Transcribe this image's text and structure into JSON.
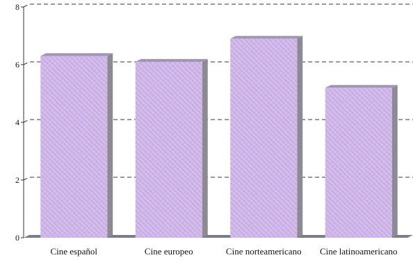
{
  "chart_data": {
    "type": "bar",
    "categories": [
      "Cine español",
      "Cine europeo",
      "Cine norteamericano",
      "Cine latinoamericano"
    ],
    "values": [
      6.3,
      6.1,
      6.9,
      5.2
    ],
    "ylim": [
      0,
      8
    ],
    "yticks": [
      "0",
      "2",
      "4",
      "6",
      "8"
    ],
    "grid": true,
    "grid_style": "dashed",
    "legend": "none",
    "colors": {
      "bar_top": "#cc99ff",
      "bar_bottom": "#cfcfcf",
      "bar_side": "#8c8a93",
      "bar_cap": "#9f96b3",
      "floor": "#7c7c86",
      "grid": "#333333",
      "axis": "#333333"
    }
  }
}
